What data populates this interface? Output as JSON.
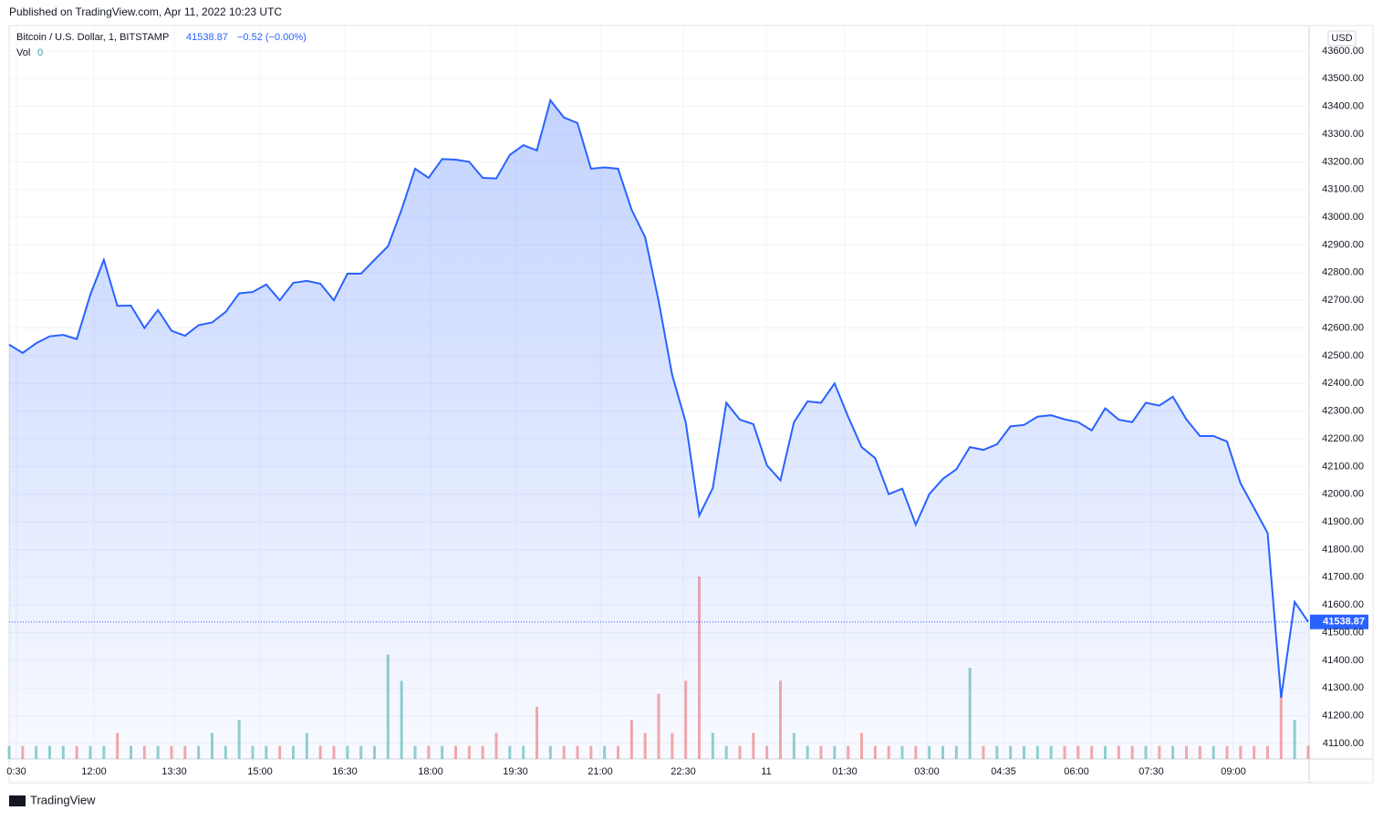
{
  "chart_data": {
    "type": "area",
    "published": "Published on TradingView.com, Apr 11, 2022 10:23 UTC",
    "symbol": "Bitcoin / U.S. Dollar, 1, BITSTAMP",
    "last": 41538.87,
    "change": "−0.52 (−0.00%)",
    "volume_label": "Vol",
    "volume_value": "0",
    "currency": "USD",
    "brand": "TradingView",
    "color": "#2962ff",
    "grid": true,
    "x_labels": [
      "0:30",
      "12:00",
      "13:30",
      "15:00",
      "16:30",
      "18:00",
      "19:30",
      "21:00",
      "22:30",
      "11",
      "01:30",
      "03:00",
      "04:35",
      "06:00",
      "07:30",
      "09:00"
    ],
    "ylim": [
      41044,
      43692
    ],
    "yticks": [
      {
        "value": 41100,
        "label": "41100.00"
      },
      {
        "value": 41200,
        "label": "41200.00"
      },
      {
        "value": 41300,
        "label": "41300.00"
      },
      {
        "value": 41400,
        "label": "41400.00"
      },
      {
        "value": 41500,
        "label": "41500.00"
      },
      {
        "value": 41600,
        "label": "41600.00"
      },
      {
        "value": 41700,
        "label": "41700.00"
      },
      {
        "value": 41800,
        "label": "41800.00"
      },
      {
        "value": 41900,
        "label": "41900.00"
      },
      {
        "value": 42000,
        "label": "42000.00"
      },
      {
        "value": 42100,
        "label": "42100.00"
      },
      {
        "value": 42200,
        "label": "42200.00"
      },
      {
        "value": 42300,
        "label": "42300.00"
      },
      {
        "value": 42400,
        "label": "42400.00"
      },
      {
        "value": 42500,
        "label": "42500.00"
      },
      {
        "value": 42600,
        "label": "42600.00"
      },
      {
        "value": 42700,
        "label": "42700.00"
      },
      {
        "value": 42800,
        "label": "42800.00"
      },
      {
        "value": 42900,
        "label": "42900.00"
      },
      {
        "value": 43000,
        "label": "43000.00"
      },
      {
        "value": 43100,
        "label": "43100.00"
      },
      {
        "value": 43200,
        "label": "43200.00"
      },
      {
        "value": 43300,
        "label": "43300.00"
      },
      {
        "value": 43400,
        "label": "43400.00"
      },
      {
        "value": 43500,
        "label": "43500.00"
      },
      {
        "value": 43600,
        "label": "43600.00"
      }
    ],
    "values": [
      42540,
      42510,
      42545,
      42570,
      42575,
      42560,
      42720,
      42846,
      42680,
      42681,
      42600,
      42665,
      42590,
      42572,
      42610,
      42620,
      42658,
      42725,
      42730,
      42757,
      42700,
      42763,
      42770,
      42760,
      42700,
      42796,
      42796,
      42846,
      42895,
      43027,
      43175,
      43142,
      43210,
      43208,
      43200,
      43142,
      43140,
      43225,
      43260,
      43241,
      43422,
      43360,
      43340,
      43175,
      43180,
      43175,
      43027,
      42928,
      42697,
      42430,
      42260,
      41923,
      42022,
      42330,
      42269,
      42253,
      42104,
      42050,
      42260,
      42335,
      42330,
      42400,
      42280,
      42170,
      42130,
      42000,
      42020,
      41890,
      42000,
      42055,
      42090,
      42170,
      42160,
      42180,
      42245,
      42250,
      42280,
      42285,
      42270,
      42260,
      42230,
      42310,
      42269,
      42260,
      42330,
      42320,
      42352,
      42270,
      42210,
      42210,
      42190,
      42039,
      41950,
      41860,
      41265,
      41611,
      41538.87
    ],
    "volume": [
      1,
      1,
      1,
      1,
      1,
      1,
      1,
      1,
      2,
      1,
      1,
      1,
      1,
      1,
      1,
      2,
      1,
      3,
      1,
      1,
      1,
      1,
      2,
      1,
      1,
      1,
      1,
      1,
      8,
      6,
      1,
      1,
      1,
      1,
      1,
      1,
      2,
      1,
      1,
      4,
      1,
      1,
      1,
      1,
      1,
      1,
      3,
      2,
      5,
      2,
      6,
      14,
      2,
      1,
      1,
      2,
      1,
      6,
      2,
      1,
      1,
      1,
      1,
      2,
      1,
      1,
      1,
      1,
      1,
      1,
      1,
      7,
      1,
      1,
      1,
      1,
      1,
      1,
      1,
      1,
      1,
      1,
      1,
      1,
      1,
      1,
      1,
      1,
      1,
      1,
      1,
      1,
      1,
      1,
      5,
      3,
      1
    ]
  }
}
